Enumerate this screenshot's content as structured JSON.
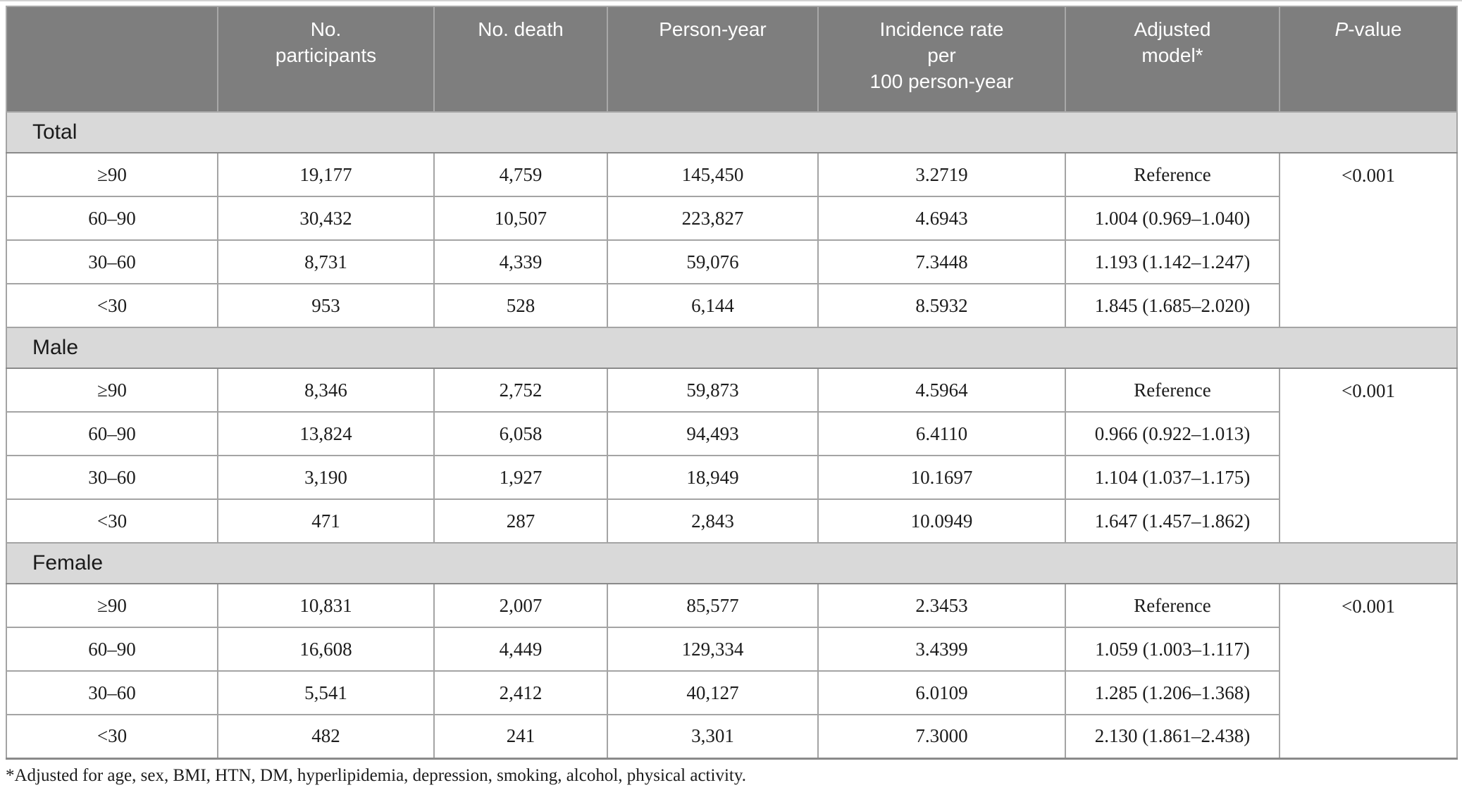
{
  "table": {
    "headers": {
      "category": "",
      "participants": "No.\nparticipants",
      "deaths": "No. death",
      "person_year": "Person-year",
      "incidence": "Incidence rate\nper\n100 person-year",
      "adjusted": "Adjusted\nmodel*",
      "p_value_italic": "P",
      "p_value_rest": "-value"
    },
    "sections": [
      {
        "label": "Total",
        "p_value": "<0.001",
        "rows": [
          {
            "category": "≥90",
            "participants": "19,177",
            "deaths": "4,759",
            "person_year": "145,450",
            "incidence_rate": "3.2719",
            "adjusted_model": "Reference"
          },
          {
            "category": "60–90",
            "participants": "30,432",
            "deaths": "10,507",
            "person_year": "223,827",
            "incidence_rate": "4.6943",
            "adjusted_model": "1.004 (0.969–1.040)"
          },
          {
            "category": "30–60",
            "participants": "8,731",
            "deaths": "4,339",
            "person_year": "59,076",
            "incidence_rate": "7.3448",
            "adjusted_model": "1.193 (1.142–1.247)"
          },
          {
            "category": "<30",
            "participants": "953",
            "deaths": "528",
            "person_year": "6,144",
            "incidence_rate": "8.5932",
            "adjusted_model": "1.845 (1.685–2.020)"
          }
        ]
      },
      {
        "label": "Male",
        "p_value": "<0.001",
        "rows": [
          {
            "category": "≥90",
            "participants": "8,346",
            "deaths": "2,752",
            "person_year": "59,873",
            "incidence_rate": "4.5964",
            "adjusted_model": "Reference"
          },
          {
            "category": "60–90",
            "participants": "13,824",
            "deaths": "6,058",
            "person_year": "94,493",
            "incidence_rate": "6.4110",
            "adjusted_model": "0.966 (0.922–1.013)"
          },
          {
            "category": "30–60",
            "participants": "3,190",
            "deaths": "1,927",
            "person_year": "18,949",
            "incidence_rate": "10.1697",
            "adjusted_model": "1.104 (1.037–1.175)"
          },
          {
            "category": "<30",
            "participants": "471",
            "deaths": "287",
            "person_year": "2,843",
            "incidence_rate": "10.0949",
            "adjusted_model": "1.647 (1.457–1.862)"
          }
        ]
      },
      {
        "label": "Female",
        "p_value": "<0.001",
        "rows": [
          {
            "category": "≥90",
            "participants": "10,831",
            "deaths": "2,007",
            "person_year": "85,577",
            "incidence_rate": "2.3453",
            "adjusted_model": "Reference"
          },
          {
            "category": "60–90",
            "participants": "16,608",
            "deaths": "4,449",
            "person_year": "129,334",
            "incidence_rate": "3.4399",
            "adjusted_model": "1.059 (1.003–1.117)"
          },
          {
            "category": "30–60",
            "participants": "5,541",
            "deaths": "2,412",
            "person_year": "40,127",
            "incidence_rate": "6.0109",
            "adjusted_model": "1.285 (1.206–1.368)"
          },
          {
            "category": "<30",
            "participants": "482",
            "deaths": "241",
            "person_year": "3,301",
            "incidence_rate": "7.3000",
            "adjusted_model": "2.130 (1.861–2.438)"
          }
        ]
      }
    ]
  },
  "footnote": {
    "marker": "*",
    "text": "Adjusted for age, sex, BMI, HTN, DM, hyperlipidemia, depression, smoking, alcohol, physical activity."
  },
  "colors": {
    "header_bg": "#7e7e7e",
    "header_text": "#ffffff",
    "section_bg": "#d9d9d9",
    "border_light": "#a4a4a4",
    "border_dark": "#8a8a8a",
    "body_text": "#1c1c1c"
  }
}
